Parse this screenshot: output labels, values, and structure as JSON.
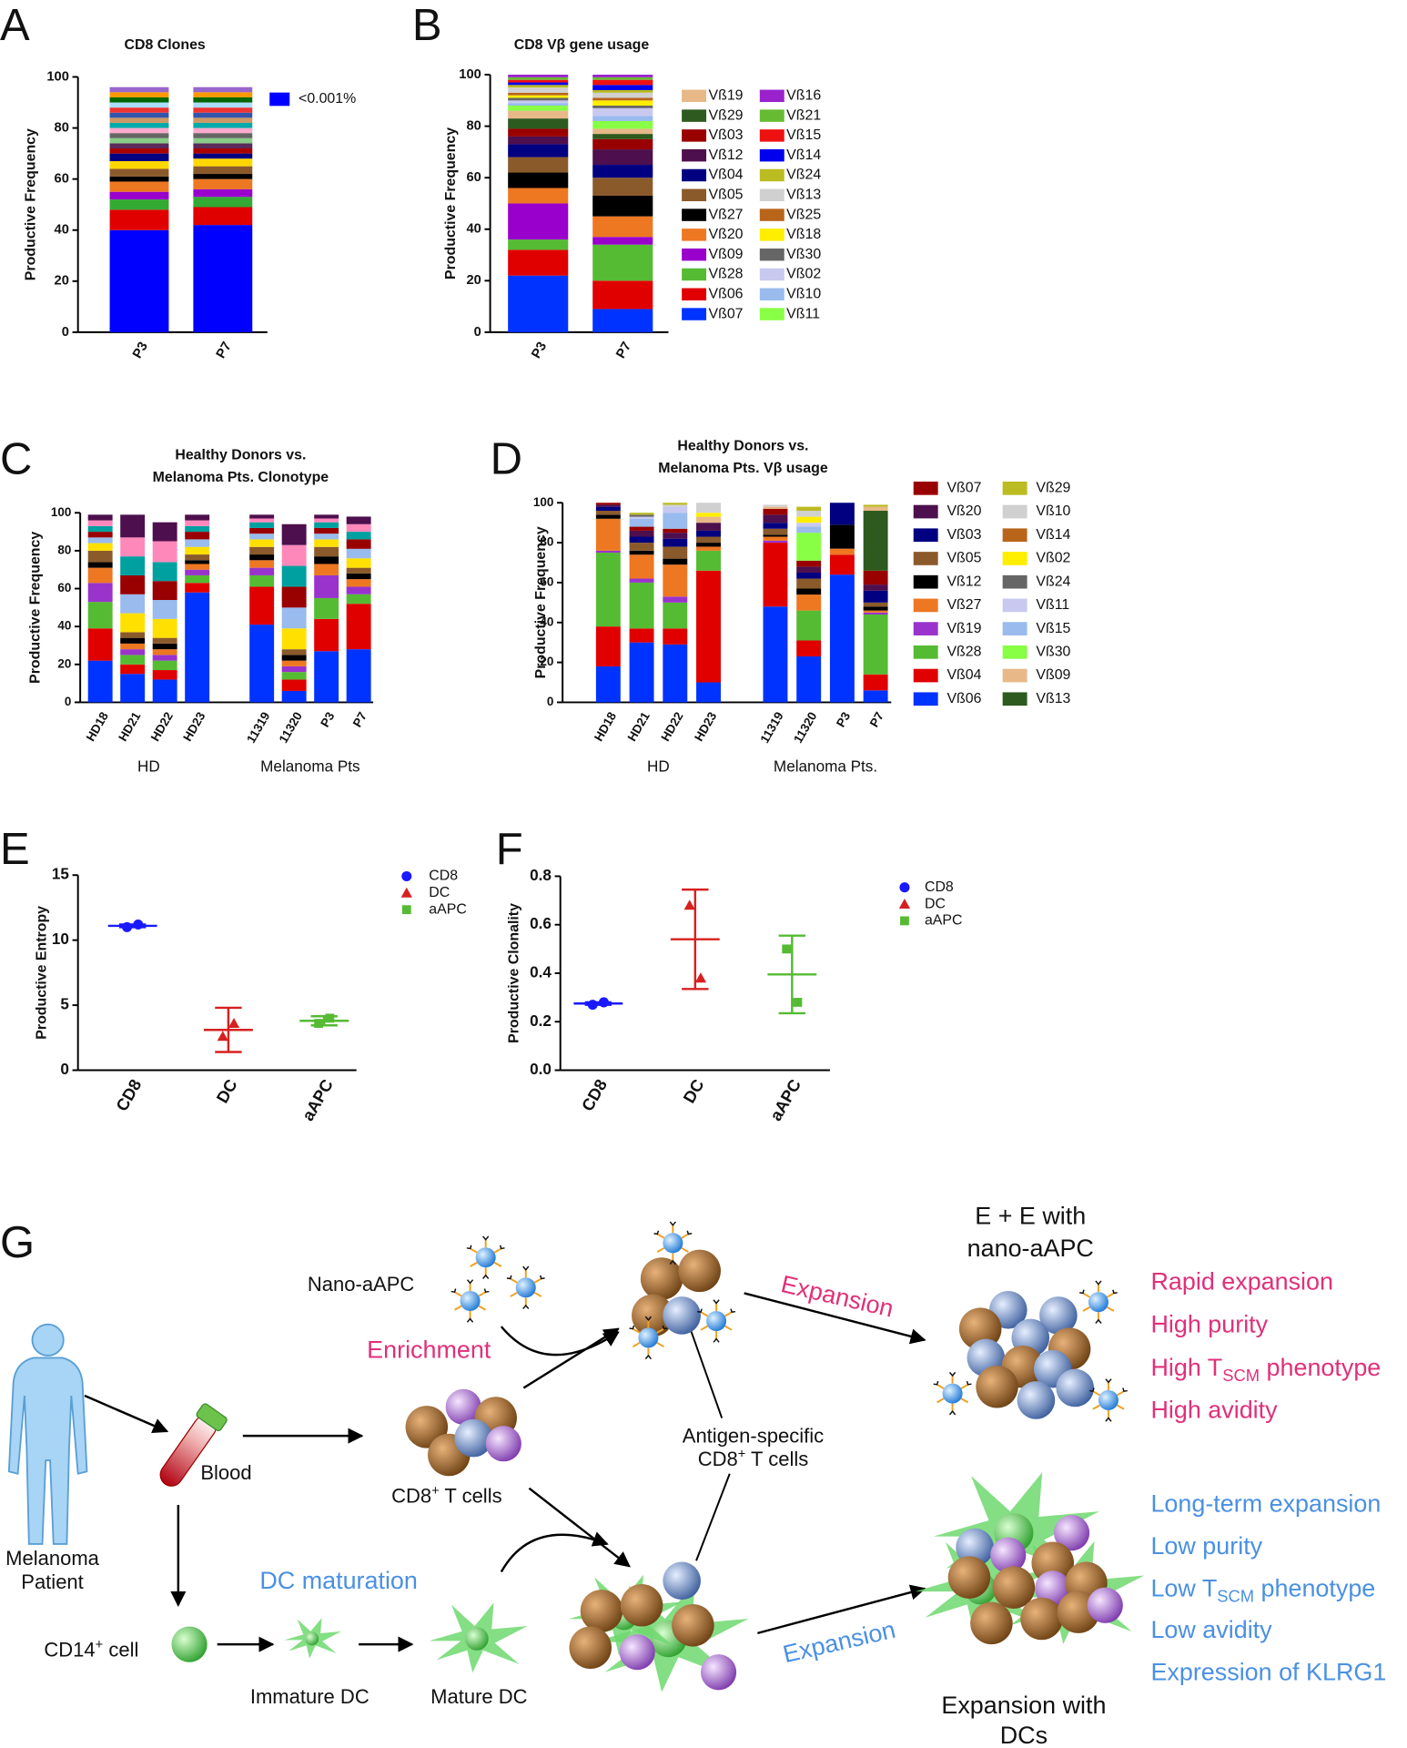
{
  "chart_data": [
    {
      "type": "bar",
      "stacked": true,
      "panel": "A",
      "title": "CD8 Clones",
      "ylabel": "Productive Frequency",
      "categories": [
        "P3",
        "P7"
      ],
      "ylim": [
        0,
        100
      ],
      "yticks": [
        0,
        20,
        40,
        60,
        80,
        100
      ],
      "series": [
        {
          "name": "<0.001%",
          "color": "#0000ff",
          "values": [
            40,
            42
          ]
        },
        {
          "color": "#e00000",
          "values": [
            8,
            7
          ]
        },
        {
          "color": "#33aa33",
          "values": [
            4,
            4
          ]
        },
        {
          "color": "#9900cc",
          "values": [
            3,
            3
          ]
        },
        {
          "color": "#ee7722",
          "values": [
            4,
            4
          ]
        },
        {
          "color": "#000000",
          "values": [
            2,
            2
          ]
        },
        {
          "color": "#8b5a2b",
          "values": [
            3,
            3
          ]
        },
        {
          "color": "#ffd700",
          "values": [
            3,
            3
          ]
        },
        {
          "color": "#000080",
          "values": [
            3,
            2
          ]
        },
        {
          "color": "#aa0000",
          "values": [
            2,
            2
          ]
        },
        {
          "color": "#5a2a5a",
          "values": [
            2,
            2
          ]
        },
        {
          "color": "#88cc88",
          "values": [
            2,
            2
          ]
        },
        {
          "color": "#666666",
          "values": [
            2,
            2
          ]
        },
        {
          "color": "#ffaacc",
          "values": [
            2,
            2
          ]
        },
        {
          "color": "#00aaaa",
          "values": [
            2,
            2
          ]
        },
        {
          "color": "#cc9966",
          "values": [
            2,
            2
          ]
        },
        {
          "color": "#3355aa",
          "values": [
            2,
            2
          ]
        },
        {
          "color": "#ee3333",
          "values": [
            2,
            2
          ]
        },
        {
          "color": "#aaddff",
          "values": [
            2,
            2
          ]
        },
        {
          "color": "#006600",
          "values": [
            2,
            2
          ]
        },
        {
          "color": "#ff9900",
          "values": [
            2,
            2
          ]
        },
        {
          "color": "#9966cc",
          "values": [
            2,
            2
          ]
        }
      ]
    },
    {
      "type": "bar",
      "stacked": true,
      "panel": "B",
      "title": "CD8 Vβ gene usage",
      "ylabel": "Productive Frequency",
      "categories": [
        "P3",
        "P7"
      ],
      "ylim": [
        0,
        100
      ],
      "yticks": [
        0,
        20,
        40,
        60,
        80,
        100
      ],
      "series": [
        {
          "name": "Vß07",
          "color": "#0033ff",
          "values": [
            22,
            9
          ]
        },
        {
          "name": "Vß06",
          "color": "#e00000",
          "values": [
            10,
            11
          ]
        },
        {
          "name": "Vß28",
          "color": "#55bb33",
          "values": [
            4,
            14
          ]
        },
        {
          "name": "Vß09",
          "color": "#9900cc",
          "values": [
            14,
            3
          ]
        },
        {
          "name": "Vß20",
          "color": "#ee7722",
          "values": [
            6,
            8
          ]
        },
        {
          "name": "Vß27",
          "color": "#000000",
          "values": [
            6,
            8
          ]
        },
        {
          "name": "Vß05",
          "color": "#8b5a2b",
          "values": [
            6,
            7
          ]
        },
        {
          "name": "Vß04",
          "color": "#000080",
          "values": [
            5,
            5
          ]
        },
        {
          "name": "Vß12",
          "color": "#4d0f4d",
          "values": [
            3,
            6
          ]
        },
        {
          "name": "Vß03",
          "color": "#990000",
          "values": [
            3,
            4
          ]
        },
        {
          "name": "Vß29",
          "color": "#2d5a1e",
          "values": [
            4,
            2
          ]
        },
        {
          "name": "Vß19",
          "color": "#e8b888",
          "values": [
            3,
            2
          ]
        },
        {
          "name": "Vß11",
          "color": "#88ff44",
          "values": [
            2,
            3
          ]
        },
        {
          "name": "Vß10",
          "color": "#99bbee",
          "values": [
            1,
            2
          ]
        },
        {
          "name": "Vß02",
          "color": "#c8c8f0",
          "values": [
            1,
            3
          ]
        },
        {
          "name": "Vß30",
          "color": "#666666",
          "values": [
            1,
            1
          ]
        },
        {
          "name": "Vß18",
          "color": "#ffee00",
          "values": [
            1,
            2
          ]
        },
        {
          "name": "Vß25",
          "color": "#b8651a",
          "values": [
            1,
            1
          ]
        },
        {
          "name": "Vß13",
          "color": "#d0d0d0",
          "values": [
            2,
            2
          ]
        },
        {
          "name": "Vß24",
          "color": "#bbbb22",
          "values": [
            1,
            1
          ]
        },
        {
          "name": "Vß14",
          "color": "#0000ee",
          "values": [
            1,
            2
          ]
        },
        {
          "name": "Vß15",
          "color": "#ee1111",
          "values": [
            1,
            2
          ]
        },
        {
          "name": "Vß21",
          "color": "#66bb33",
          "values": [
            1,
            1
          ]
        },
        {
          "name": "Vß16",
          "color": "#9922cc",
          "values": [
            1,
            1
          ]
        }
      ]
    },
    {
      "type": "bar",
      "stacked": true,
      "panel": "C",
      "title": [
        "Healthy Donors vs.",
        "Melanoma Pts. Clonotype"
      ],
      "ylabel": "Productive Frequency",
      "categories": [
        "HD18",
        "HD21",
        "HD22",
        "HD23",
        null,
        "11319",
        "11320",
        "P3",
        "P7"
      ],
      "groups": [
        "HD",
        "Melanoma Pts"
      ],
      "ylim": [
        0,
        100
      ],
      "yticks": [
        0,
        20,
        40,
        60,
        80,
        100
      ],
      "series": [
        {
          "color": "#0033ff",
          "values": [
            22,
            15,
            12,
            58,
            null,
            41,
            6,
            27,
            28
          ]
        },
        {
          "color": "#e00000",
          "values": [
            17,
            5,
            5,
            5,
            null,
            20,
            6,
            17,
            24
          ]
        },
        {
          "color": "#55bb33",
          "values": [
            14,
            5,
            5,
            4,
            null,
            6,
            4,
            11,
            5
          ]
        },
        {
          "color": "#9933cc",
          "values": [
            10,
            3,
            3,
            3,
            null,
            4,
            3,
            12,
            4
          ]
        },
        {
          "color": "#ee7722",
          "values": [
            8,
            3,
            3,
            3,
            null,
            4,
            3,
            6,
            4
          ]
        },
        {
          "color": "#000000",
          "values": [
            3,
            3,
            3,
            2,
            null,
            3,
            3,
            4,
            3
          ]
        },
        {
          "color": "#8b5a2b",
          "values": [
            6,
            3,
            3,
            3,
            null,
            4,
            3,
            5,
            3
          ]
        },
        {
          "color": "#ffe000",
          "values": [
            4,
            10,
            10,
            4,
            null,
            4,
            11,
            4,
            5
          ]
        },
        {
          "color": "#99bbee",
          "values": [
            3,
            10,
            10,
            4,
            null,
            3,
            11,
            3,
            5
          ]
        },
        {
          "color": "#990000",
          "values": [
            3,
            10,
            10,
            4,
            null,
            3,
            11,
            3,
            5
          ]
        },
        {
          "color": "#00a0a0",
          "values": [
            3,
            10,
            10,
            3,
            null,
            3,
            11,
            3,
            4
          ]
        },
        {
          "color": "#ff88bb",
          "values": [
            3,
            10,
            11,
            3,
            null,
            2,
            11,
            2,
            4
          ]
        },
        {
          "color": "#4d0f4d",
          "values": [
            3,
            12,
            10,
            3,
            null,
            2,
            11,
            2,
            4
          ]
        }
      ]
    },
    {
      "type": "bar",
      "stacked": true,
      "panel": "D",
      "title": [
        "Healthy Donors vs.",
        "Melanoma Pts. Vβ usage"
      ],
      "ylabel": "Productive Frequency",
      "categories": [
        "HD18",
        "HD21",
        "HD22",
        "HD23",
        null,
        "11319",
        "11320",
        "P3",
        "P7"
      ],
      "groups": [
        "HD",
        "Melanoma Pts."
      ],
      "ylim": [
        0,
        100
      ],
      "yticks": [
        0,
        20,
        40,
        60,
        80,
        100
      ],
      "series": [
        {
          "name": "Vß06",
          "color": "#0033ff",
          "values": [
            18,
            30,
            29,
            10,
            null,
            48,
            23,
            64,
            6
          ]
        },
        {
          "name": "Vß04",
          "color": "#e00000",
          "values": [
            20,
            7,
            8,
            56,
            null,
            32,
            8,
            10,
            8
          ]
        },
        {
          "name": "Vß28",
          "color": "#55bb33",
          "values": [
            37,
            23,
            13,
            10,
            null,
            0,
            15,
            0,
            30
          ]
        },
        {
          "name": "Vß19",
          "color": "#9933cc",
          "values": [
            1,
            2,
            3,
            0,
            null,
            1,
            0,
            0,
            1
          ]
        },
        {
          "name": "Vß27",
          "color": "#ee7722",
          "values": [
            16,
            12,
            16,
            2,
            null,
            2,
            8,
            3,
            1
          ]
        },
        {
          "name": "Vß12",
          "color": "#000000",
          "values": [
            2,
            2,
            3,
            2,
            null,
            1,
            3,
            12,
            2
          ]
        },
        {
          "name": "Vß05",
          "color": "#8b5a2b",
          "values": [
            2,
            4,
            6,
            3,
            null,
            3,
            5,
            0,
            2
          ]
        },
        {
          "name": "Vß03",
          "color": "#000080",
          "values": [
            2,
            3,
            4,
            3,
            null,
            3,
            3,
            11,
            6
          ]
        },
        {
          "name": "Vß20",
          "color": "#4d0f4d",
          "values": [
            1,
            3,
            3,
            4,
            null,
            4,
            3,
            0,
            3
          ]
        },
        {
          "name": "Vß07",
          "color": "#990000",
          "values": [
            1,
            2,
            2,
            0,
            null,
            3,
            3,
            0,
            7
          ]
        },
        {
          "name": "Vß13",
          "color": "#2d5a1e",
          "values": [
            0,
            0,
            0,
            0,
            null,
            0,
            0,
            0,
            30
          ]
        },
        {
          "name": "Vß09",
          "color": "#e8b888",
          "values": [
            0,
            0,
            0,
            3,
            null,
            1,
            0,
            0,
            2
          ]
        },
        {
          "name": "Vß30",
          "color": "#88ff44",
          "values": [
            0,
            0,
            0,
            0,
            null,
            0,
            14,
            0,
            0
          ]
        },
        {
          "name": "Vß15",
          "color": "#99bbee",
          "values": [
            0,
            4,
            8,
            0,
            null,
            0,
            3,
            0,
            0
          ]
        },
        {
          "name": "Vß11",
          "color": "#c8c8f0",
          "values": [
            0,
            1,
            3,
            0,
            null,
            0,
            2,
            0,
            0
          ]
        },
        {
          "name": "Vß24",
          "color": "#666666",
          "values": [
            0,
            1,
            0,
            0,
            null,
            0,
            0,
            0,
            0
          ]
        },
        {
          "name": "Vß02",
          "color": "#ffee00",
          "values": [
            0,
            0,
            0,
            2,
            null,
            0,
            3,
            0,
            0
          ]
        },
        {
          "name": "Vß14",
          "color": "#b8651a",
          "values": [
            0,
            0,
            0,
            0,
            null,
            0,
            0,
            0,
            0
          ]
        },
        {
          "name": "Vß10",
          "color": "#d0d0d0",
          "values": [
            0,
            0,
            1,
            5,
            null,
            1,
            3,
            0,
            0
          ]
        },
        {
          "name": "Vß29",
          "color": "#bbbb22",
          "values": [
            0,
            1,
            1,
            0,
            null,
            0,
            2,
            0,
            1
          ]
        }
      ]
    },
    {
      "type": "errorbar",
      "panel": "E",
      "ylabel": "Productive Entropy",
      "categories": [
        "CD8",
        "DC",
        "aAPC"
      ],
      "ylim": [
        0,
        15
      ],
      "yticks": [
        0,
        5,
        10,
        15
      ],
      "series": [
        {
          "name": "CD8",
          "color": "#1a1aff",
          "marker": "circle",
          "points": [
            11.0,
            11.2
          ],
          "mean": 11.1,
          "error": 0.1
        },
        {
          "name": "DC",
          "color": "#d62020",
          "marker": "triangle",
          "points": [
            2.6,
            3.6
          ],
          "mean": 3.1,
          "error": 1.7
        },
        {
          "name": "aAPC",
          "color": "#55bb33",
          "marker": "square",
          "points": [
            3.6,
            4.0
          ],
          "mean": 3.8,
          "error": 0.35
        }
      ]
    },
    {
      "type": "errorbar",
      "panel": "F",
      "ylabel": "Productive Clonality",
      "categories": [
        "CD8",
        "DC",
        "aAPC"
      ],
      "ylim": [
        0,
        0.8
      ],
      "yticks": [
        {
          "value": 0,
          "label": "0.0"
        },
        0.2,
        0.4,
        0.6,
        0.8
      ],
      "series": [
        {
          "name": "CD8",
          "color": "#1a1aff",
          "marker": "circle",
          "points": [
            0.27,
            0.28
          ],
          "mean": 0.275,
          "error": 0.005
        },
        {
          "name": "DC",
          "color": "#d62020",
          "marker": "triangle",
          "points": [
            0.68,
            0.38
          ],
          "mean": 0.54,
          "error": 0.205
        },
        {
          "name": "aAPC",
          "color": "#55bb33",
          "marker": "square",
          "points": [
            0.5,
            0.28
          ],
          "mean": 0.395,
          "error": 0.16
        }
      ]
    }
  ],
  "diagram": {
    "panel": "G",
    "ee_title": [
      "E + E with",
      "nano-aAPC"
    ],
    "nano_label": "Nano-aAPC",
    "enrichment": "Enrichment",
    "expansion_top": "Expansion",
    "ee_features": [
      {
        "text": "Rapid expansion"
      },
      {
        "text": "High purity"
      },
      {
        "text": "High T",
        "sub": "SCM",
        "rest": " phenotype"
      },
      {
        "text": "High avidity"
      }
    ],
    "patient": [
      "Melanoma",
      "Patient"
    ],
    "blood": "Blood",
    "cd8_cells": {
      "text": "CD8",
      "sup": "+",
      "rest": " T cells"
    },
    "antigen_label": "Antigen-specific",
    "antigen_cells": {
      "text": "CD8",
      "sup": "+",
      "rest": " T cells"
    },
    "dc_maturation": "DC maturation",
    "cd14": {
      "text": "CD14",
      "sup": "+",
      "rest": " cell"
    },
    "immature_dc": "Immature DC",
    "mature_dc": "Mature DC",
    "expansion_bottom": "Expansion",
    "dc_features": [
      {
        "text": "Long-term expansion"
      },
      {
        "text": "Low purity"
      },
      {
        "text": "Low T",
        "sub": "SCM",
        "rest": " phenotype"
      },
      {
        "text": "Low avidity"
      },
      {
        "text": "Expression of KLRG1"
      }
    ],
    "dc_title": [
      "Expansion with",
      "DCs"
    ]
  }
}
